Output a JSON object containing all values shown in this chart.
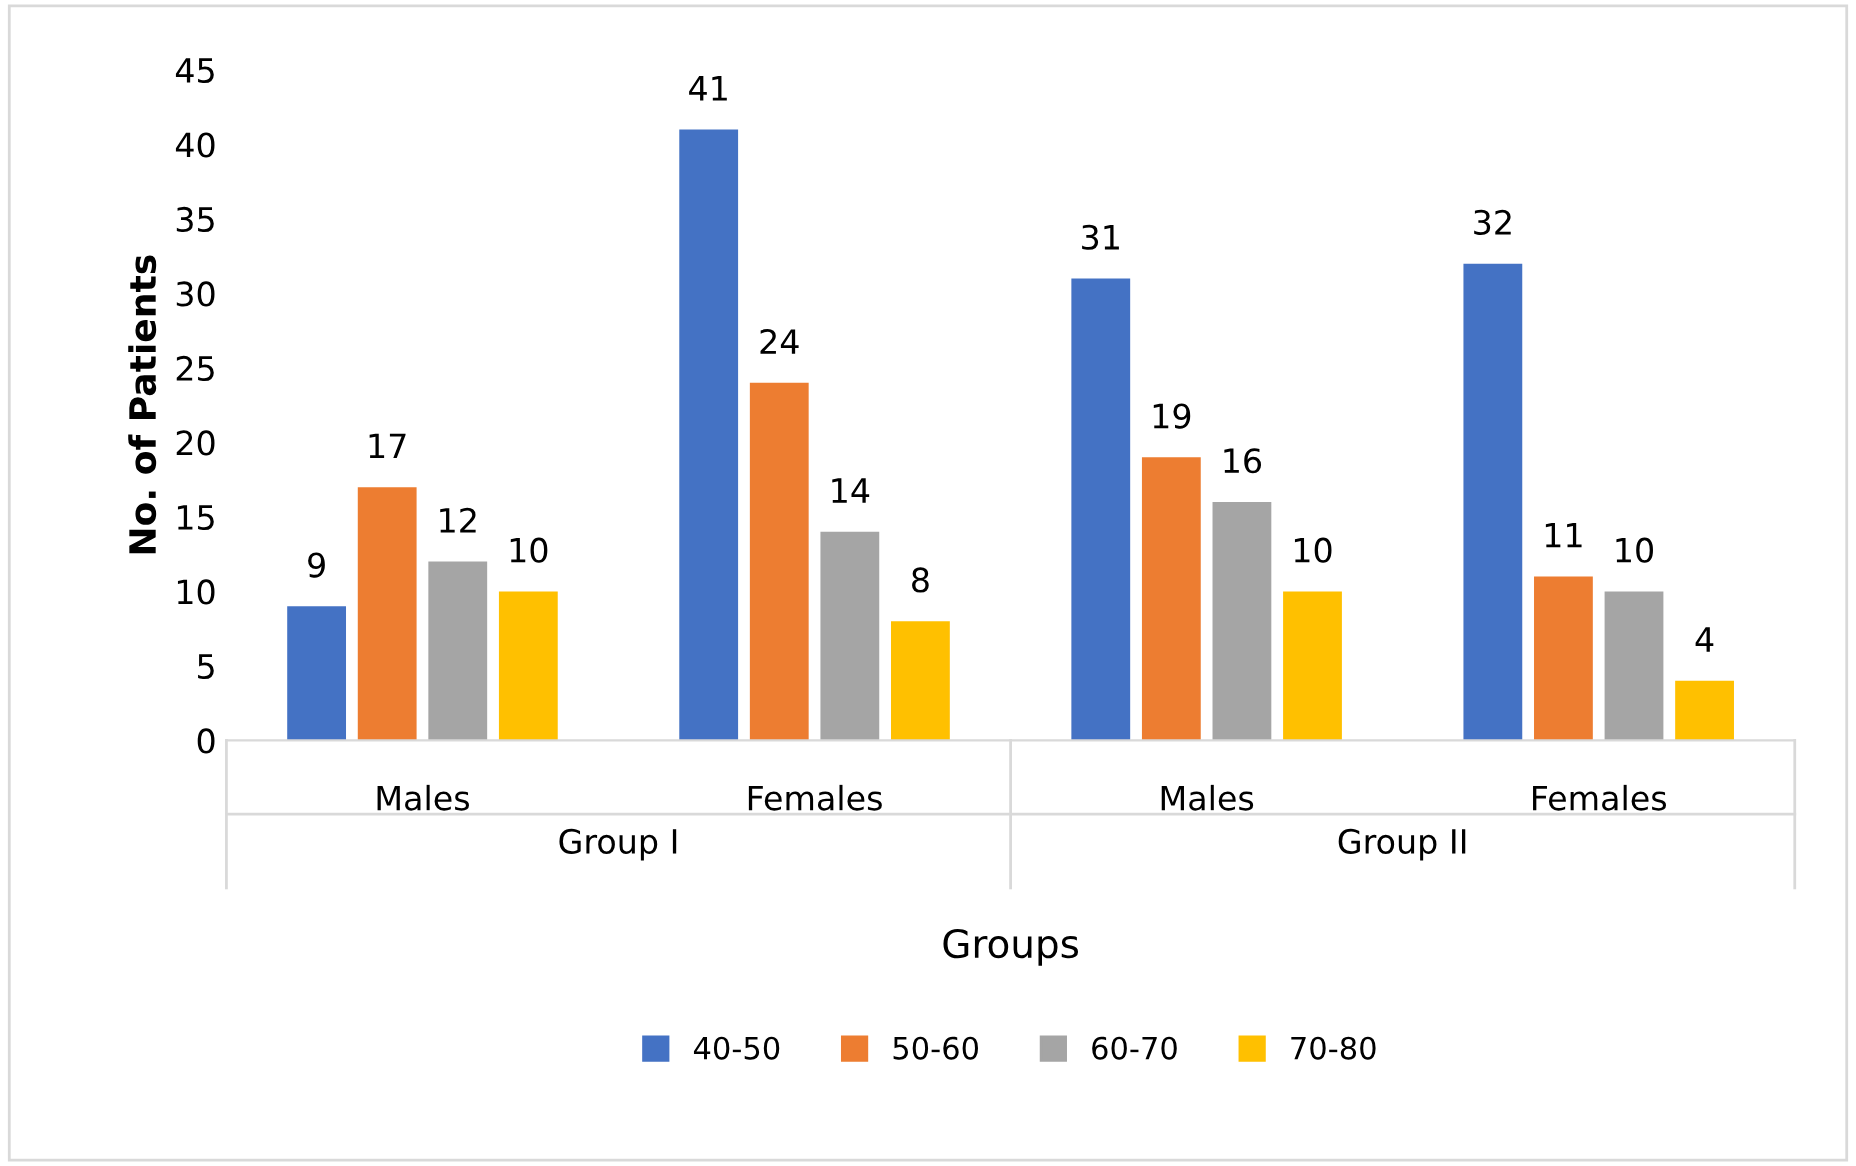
{
  "chart_data": {
    "type": "bar",
    "xlabel": "Groups",
    "ylabel": "No. of Patients",
    "categories": [
      "Males",
      "Females",
      "Males",
      "Females"
    ],
    "series": [
      {
        "name": "40-50",
        "color": "#4472c4",
        "values": [
          9,
          41,
          31,
          32
        ]
      },
      {
        "name": "50-60",
        "color": "#ed7d31",
        "values": [
          17,
          24,
          19,
          11
        ]
      },
      {
        "name": "60-70",
        "color": "#a5a5a5",
        "values": [
          12,
          14,
          16,
          10
        ]
      },
      {
        "name": "70-80",
        "color": "#ffc000",
        "values": [
          10,
          8,
          10,
          4
        ]
      }
    ],
    "annotations": [
      "Group I",
      "Group II"
    ],
    "ylim": [
      0,
      45
    ],
    "yticks": [
      0,
      5,
      10,
      15,
      20,
      25,
      30,
      35,
      40,
      45
    ],
    "data_labels": true,
    "legend": "bottom",
    "grid": false
  }
}
